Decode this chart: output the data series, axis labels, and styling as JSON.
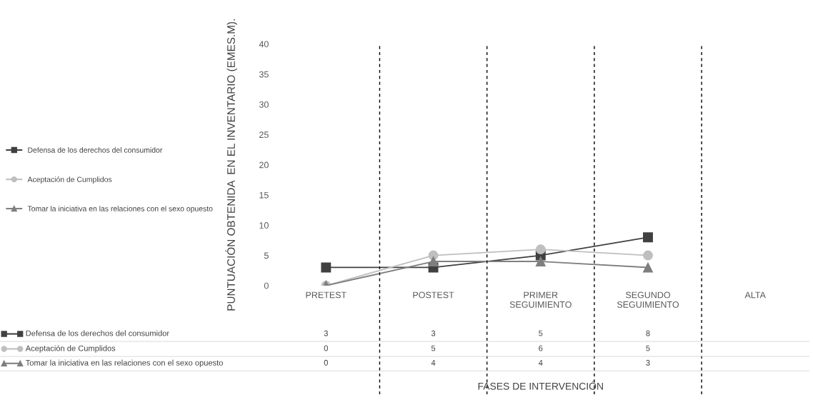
{
  "chart_data": {
    "type": "line",
    "ylabel": "PUNTUACIÓN OBTENIDA  EN EL INVENTARIO (EMES.M).",
    "annotations": [
      "FASES DE INTERVENCIÓN"
    ],
    "categories": [
      "PRETEST",
      "POSTEST",
      "PRIMER SEGUIMIENTO",
      "SEGUNDO SEGUIMIENTO",
      "ALTA"
    ],
    "series": [
      {
        "name": "Defensa de los derechos del consumidor",
        "color": "#404040",
        "marker": "square",
        "values": [
          3,
          3,
          5,
          8,
          null
        ]
      },
      {
        "name": "Aceptación de Cumplidos",
        "color": "#bfbfbf",
        "marker": "circle",
        "values": [
          0,
          5,
          6,
          5,
          null
        ]
      },
      {
        "name": "Tomar la iniciativa en las relaciones con el sexo opuesto",
        "color": "#7f7f7f",
        "marker": "triangle",
        "values": [
          0,
          4,
          4,
          3,
          null
        ]
      }
    ],
    "ylim": [
      0,
      40
    ],
    "yticks": [
      0,
      5,
      10,
      15,
      20,
      25,
      30,
      35,
      40
    ],
    "grid": "x",
    "line_style": "solid",
    "legend": "left",
    "data_labels": true
  }
}
